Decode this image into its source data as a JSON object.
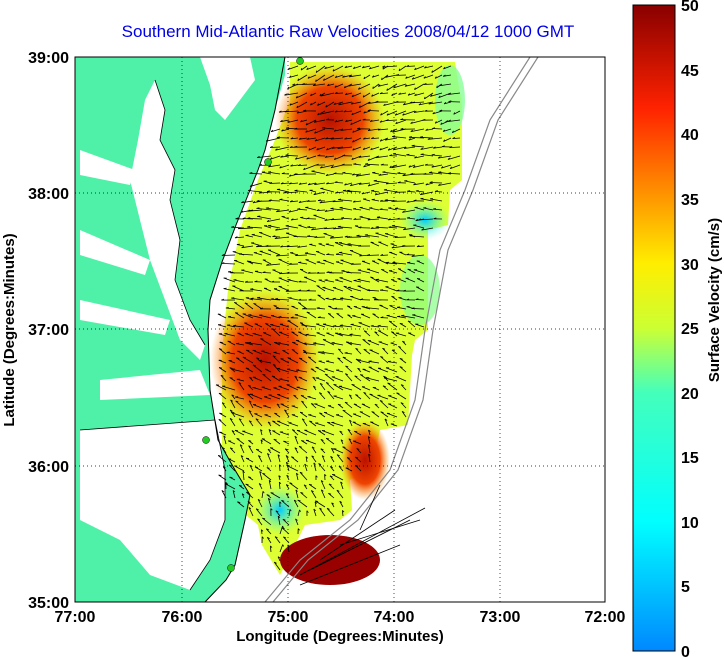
{
  "title": "Southern Mid-Atlantic Raw Velocities 2008/04/12 1000 GMT",
  "x_axis": {
    "label": "Longitude (Degrees:Minutes)",
    "ticks": [
      "77:00",
      "76:00",
      "75:00",
      "74:00",
      "73:00",
      "72:00"
    ]
  },
  "y_axis": {
    "label": "Latitude (Degrees:Minutes)",
    "ticks": [
      "39:00",
      "38:00",
      "37:00",
      "36:00",
      "35:00"
    ]
  },
  "colorbar": {
    "label": "Surface Velocity (cm/s)",
    "ticks": [
      "50",
      "45",
      "40",
      "35",
      "30",
      "25",
      "20",
      "15",
      "10",
      "5",
      "0"
    ],
    "min": 0,
    "max": 50,
    "colormap": "jet"
  },
  "colors": {
    "land": "#4ff0a8",
    "title": "#0000e6",
    "station_marker": "#22cc22"
  },
  "map": {
    "lon_range": [
      -77,
      -72
    ],
    "lat_range": [
      35,
      39
    ],
    "grid": "dotted",
    "features": [
      "coastline",
      "bathymetry-contours",
      "hf-radar-stations",
      "velocity-vectors",
      "velocity-color-field"
    ]
  }
}
